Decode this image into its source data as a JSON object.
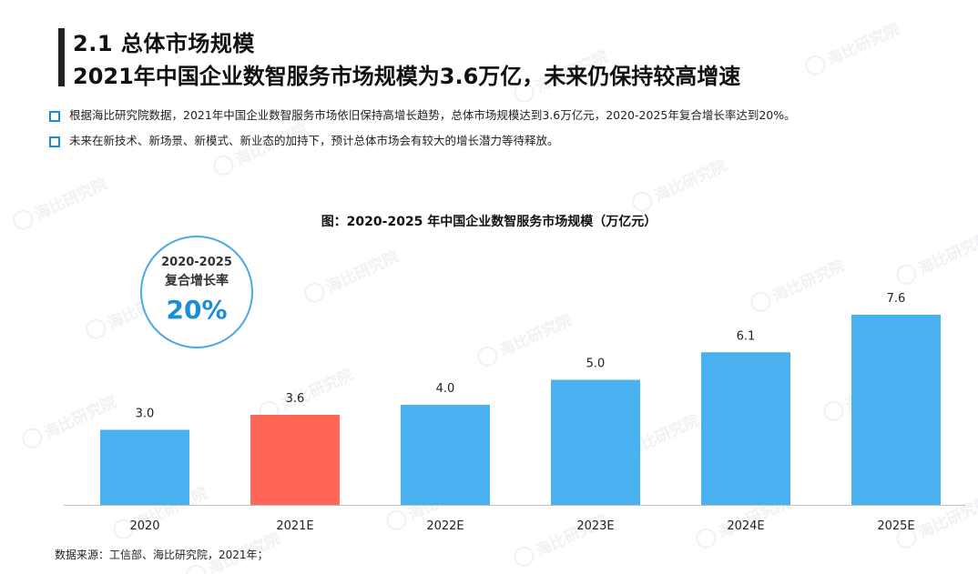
{
  "header": {
    "section_title": "2.1 总体市场规模",
    "headline": "2021年中国企业数智服务市场规模为3.6万亿，未来仍保持较高增速"
  },
  "bullets": [
    "根据海比研究院数据，2021年中国企业数智服务市场依旧保持高增长趋势，总体市场规模达到3.6万亿元，2020-2025年复合增长率达到20%。",
    "未来在新技术、新场景、新模式、新业态的加持下，预计总体市场会有较大的增长潜力等待释放。"
  ],
  "cagr": {
    "period": "2020-2025",
    "label": "复合增长率",
    "value": "20%"
  },
  "source": "数据来源：工信部、海比研究院，2021年；",
  "watermark": "海比研究院",
  "colors": {
    "bar": "#4ab1f0",
    "highlight": "#ff6655",
    "accent": "#1a8cd8"
  },
  "chart_data": {
    "type": "bar",
    "title": "图：2020-2025 年中国企业数智服务市场规模（万亿元）",
    "categories": [
      "2020",
      "2021E",
      "2022E",
      "2023E",
      "2024E",
      "2025E"
    ],
    "values": [
      3.0,
      3.6,
      4.0,
      5.0,
      6.1,
      7.6
    ],
    "value_labels": [
      "3.0",
      "3.6",
      "4.0",
      "5.0",
      "6.1",
      "7.6"
    ],
    "highlight_index": 1,
    "ylim": [
      0,
      7.6
    ],
    "xlabel": "",
    "ylabel": "",
    "grid": false,
    "legend": "none"
  }
}
